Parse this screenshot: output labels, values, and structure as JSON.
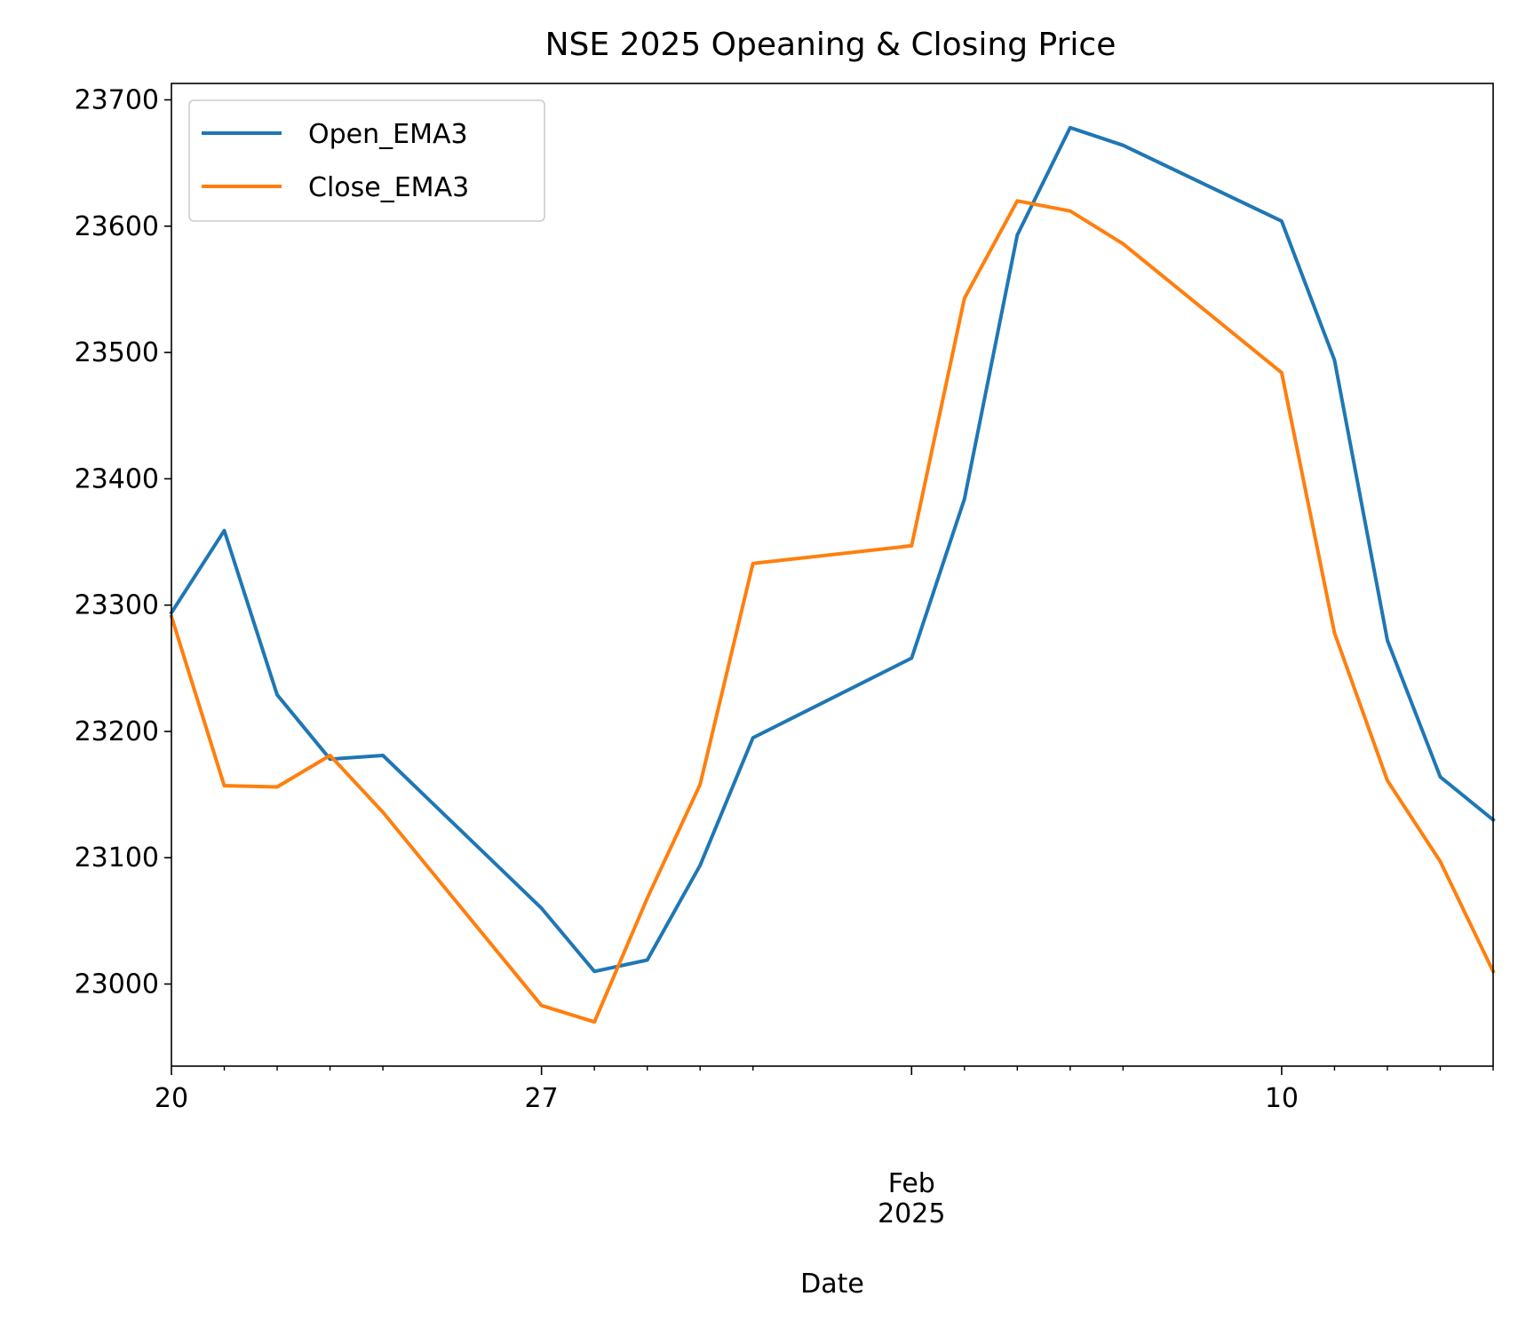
{
  "chart_data": {
    "type": "line",
    "title": "NSE 2025 Opeaning & Closing Price",
    "xlabel": "Date",
    "ylabel": "",
    "x": [
      "2025-01-20",
      "2025-01-21",
      "2025-01-22",
      "2025-01-23",
      "2025-01-24",
      "2025-01-27",
      "2025-01-28",
      "2025-01-29",
      "2025-01-30",
      "2025-01-31",
      "2025-02-03",
      "2025-02-04",
      "2025-02-05",
      "2025-02-06",
      "2025-02-07",
      "2025-02-10",
      "2025-02-11",
      "2025-02-12",
      "2025-02-13",
      "2025-02-14"
    ],
    "x_tick_labels": [
      {
        "date": "2025-01-20",
        "label": "20"
      },
      {
        "date": "2025-01-27",
        "label": "27"
      },
      {
        "date": "2025-02-10",
        "label": "10"
      }
    ],
    "x_month_label": {
      "date": "2025-02-03",
      "month": "Feb",
      "year": "2025"
    },
    "ylim": [
      22935,
      23713
    ],
    "y_ticks": [
      23000,
      23100,
      23200,
      23300,
      23400,
      23500,
      23600,
      23700
    ],
    "grid": false,
    "legend_position": "top-left",
    "series": [
      {
        "name": "Open_EMA3",
        "color": "#1f77b4",
        "values": [
          23294,
          23359,
          23229,
          23178,
          23181,
          23060,
          23010,
          23019,
          23094,
          23195,
          23258,
          23384,
          23593,
          23678,
          23664,
          23604,
          23494,
          23272,
          23164,
          23130
        ]
      },
      {
        "name": "Close_EMA3",
        "color": "#ff7f0e",
        "values": [
          23291,
          23157,
          23156,
          23181,
          23136,
          22983,
          22970,
          23068,
          23158,
          23333,
          23347,
          23543,
          23620,
          23612,
          23586,
          23484,
          23278,
          23161,
          23097,
          23010
        ]
      }
    ]
  }
}
